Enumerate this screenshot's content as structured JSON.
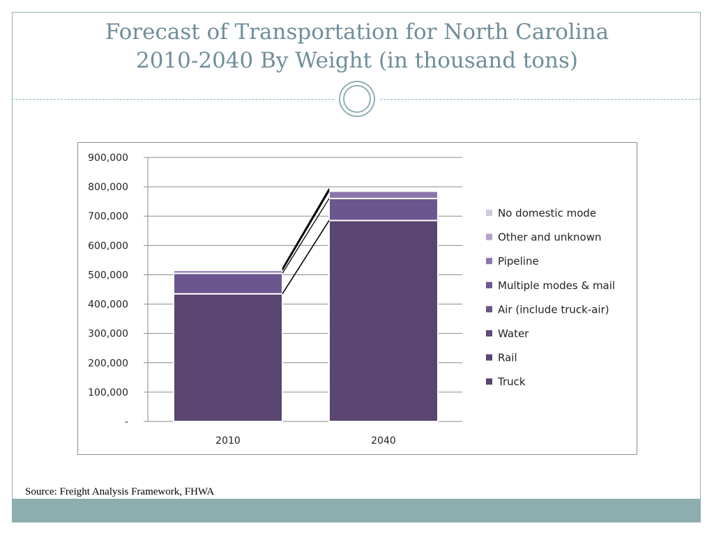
{
  "slide": {
    "title_line1": "Forecast of Transportation for North Carolina",
    "title_line2": "2010-2040 By Weight (in thousand tons)",
    "source": "Source: Freight Analysis Framework, FHWA",
    "accent_color": "#8dadaf"
  },
  "chart_data": {
    "type": "bar",
    "stacked": true,
    "categories": [
      "2010",
      "2040"
    ],
    "series": [
      {
        "name": "Truck",
        "color": "#594472",
        "values": [
          435000,
          685000
        ]
      },
      {
        "name": "Rail",
        "color": "#5c4676",
        "values": [
          0,
          0
        ]
      },
      {
        "name": "Water",
        "color": "#614a7c",
        "values": [
          0,
          0
        ]
      },
      {
        "name": "Air (include truck-air)",
        "color": "#6a5387",
        "values": [
          0,
          0
        ]
      },
      {
        "name": "Multiple modes & mail",
        "color": "#6c5690",
        "values": [
          70000,
          75000
        ]
      },
      {
        "name": "Pipeline",
        "color": "#8d75ab",
        "values": [
          10000,
          25000
        ]
      },
      {
        "name": "Other and unknown",
        "color": "#b2a2c8",
        "values": [
          3000,
          4000
        ]
      },
      {
        "name": "No domestic mode",
        "color": "#d2c9df",
        "values": [
          4000,
          5000
        ]
      }
    ],
    "legend_order": [
      "No domestic mode",
      "Other and unknown",
      "Pipeline",
      "Multiple modes & mail",
      "Air (include truck-air)",
      "Water",
      "Rail",
      "Truck"
    ],
    "ylim": [
      0,
      900000
    ],
    "yticks": [
      0,
      100000,
      200000,
      300000,
      400000,
      500000,
      600000,
      700000,
      800000,
      900000
    ],
    "ytick_labels": [
      "-",
      "100,000",
      "200,000",
      "300,000",
      "400,000",
      "500,000",
      "600,000",
      "700,000",
      "800,000",
      "900,000"
    ],
    "grid": true,
    "legend_position": "right",
    "series_lines": true
  }
}
